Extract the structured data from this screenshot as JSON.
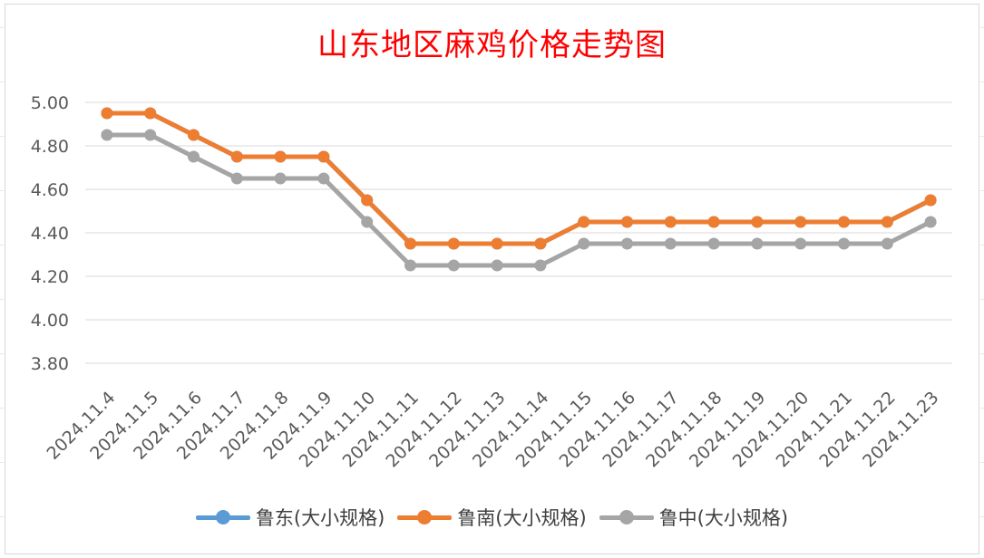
{
  "chart_data": {
    "type": "line",
    "title": "山东地区麻鸡价格走势图",
    "categories": [
      "2024.11.4",
      "2024.11.5",
      "2024.11.6",
      "2024.11.7",
      "2024.11.8",
      "2024.11.9",
      "2024.11.10",
      "2024.11.11",
      "2024.11.12",
      "2024.11.13",
      "2024.11.14",
      "2024.11.15",
      "2024.11.16",
      "2024.11.17",
      "2024.11.18",
      "2024.11.19",
      "2024.11.20",
      "2024.11.21",
      "2024.11.22",
      "2024.11.23"
    ],
    "yticks": [
      "3.80",
      "4.00",
      "4.20",
      "4.40",
      "4.60",
      "4.80",
      "5.00"
    ],
    "ylim": [
      3.8,
      5.0
    ],
    "grid": true,
    "legend_position": "bottom",
    "series": [
      {
        "name": "鲁东(大小规格)",
        "color": "#5b9bd5",
        "values": [
          4.95,
          4.95,
          4.85,
          4.75,
          4.75,
          4.75,
          4.55,
          4.35,
          4.35,
          4.35,
          4.35,
          4.45,
          4.45,
          4.45,
          4.45,
          4.45,
          4.45,
          4.45,
          4.45,
          4.55
        ]
      },
      {
        "name": "鲁南(大小规格)",
        "color": "#ed7d31",
        "values": [
          4.95,
          4.95,
          4.85,
          4.75,
          4.75,
          4.75,
          4.55,
          4.35,
          4.35,
          4.35,
          4.35,
          4.45,
          4.45,
          4.45,
          4.45,
          4.45,
          4.45,
          4.45,
          4.45,
          4.55
        ]
      },
      {
        "name": "鲁中(大小规格)",
        "color": "#a5a5a5",
        "values": [
          4.85,
          4.85,
          4.75,
          4.65,
          4.65,
          4.65,
          4.45,
          4.25,
          4.25,
          4.25,
          4.25,
          4.35,
          4.35,
          4.35,
          4.35,
          4.35,
          4.35,
          4.35,
          4.35,
          4.45
        ]
      }
    ]
  }
}
